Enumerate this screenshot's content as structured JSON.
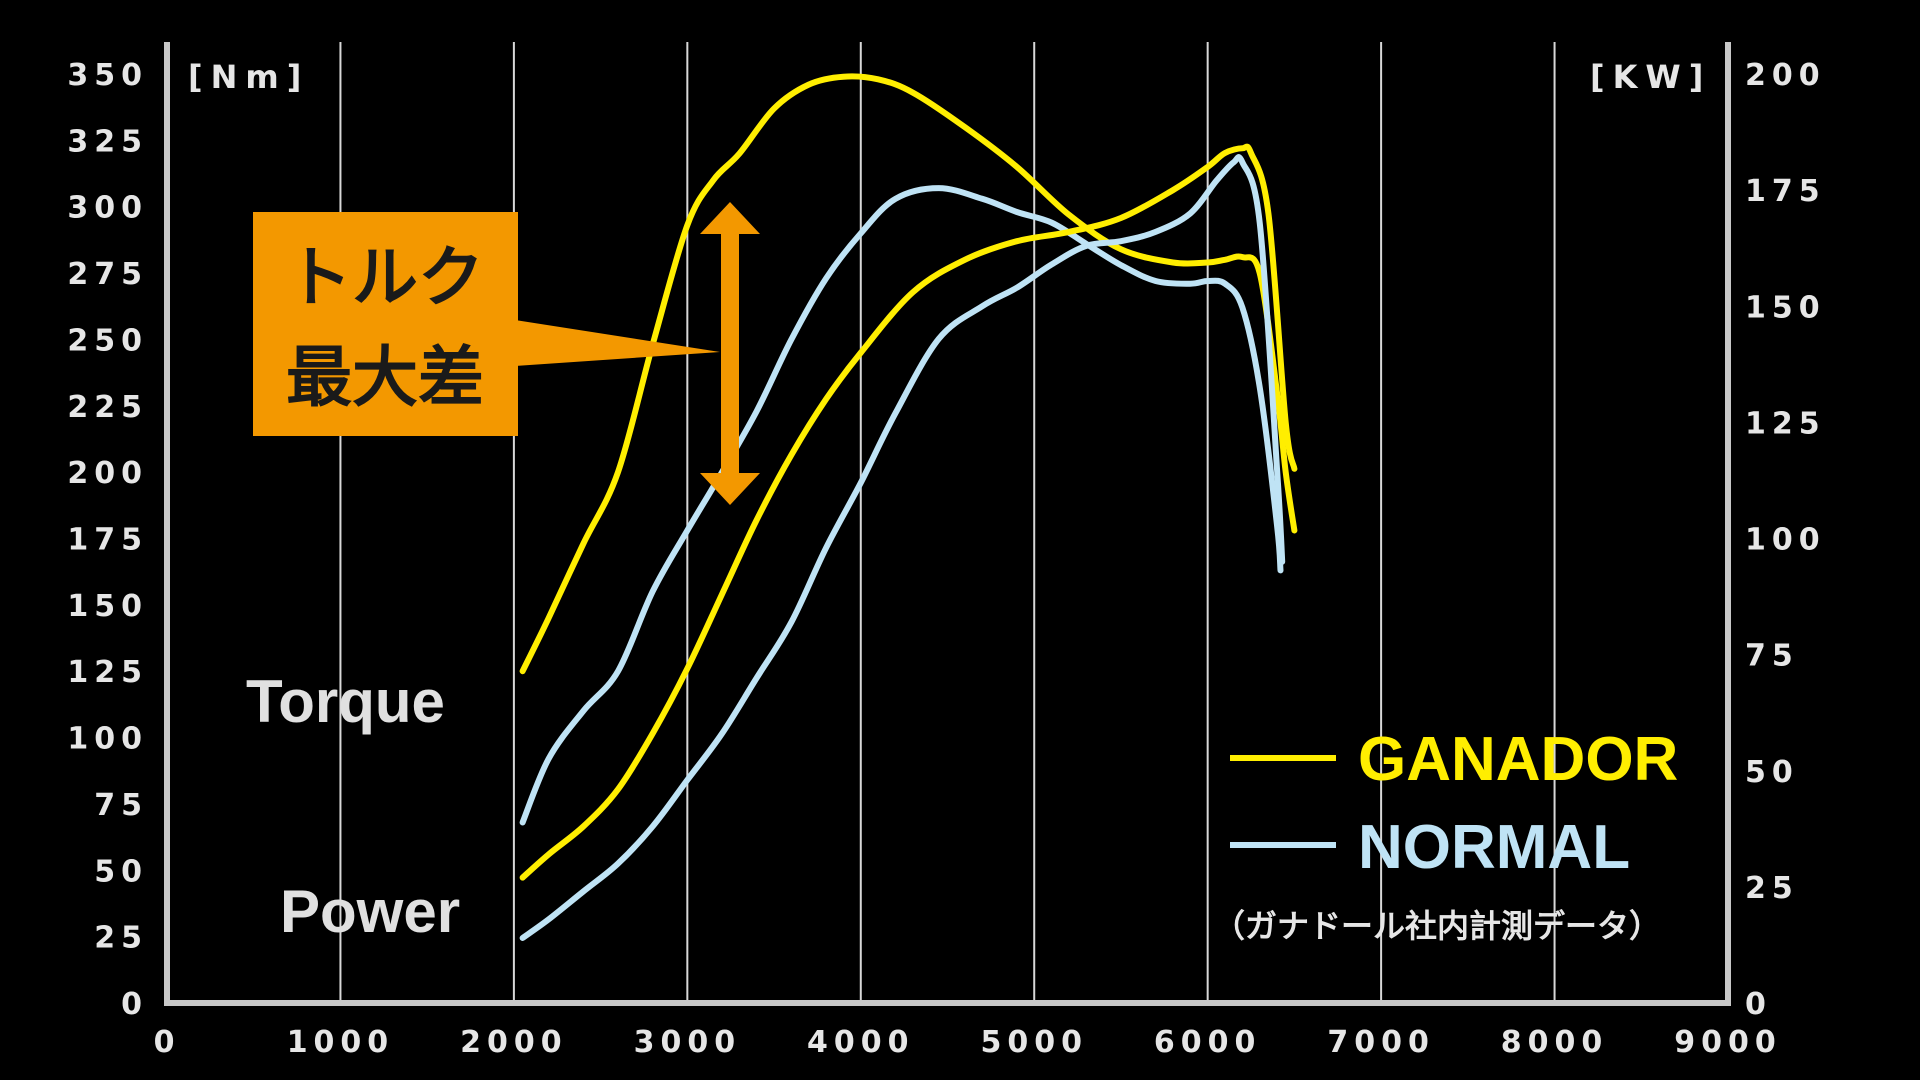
{
  "chart_data": {
    "type": "line",
    "x_label": "",
    "left_unit": "[Nm]",
    "right_unit": "[KW]",
    "xlim": [
      0,
      9000
    ],
    "ylim_left": [
      0,
      350
    ],
    "ylim_right": [
      0,
      200
    ],
    "x_ticks": [
      "0",
      "1000",
      "2000",
      "3000",
      "4000",
      "5000",
      "6000",
      "7000",
      "8000",
      "9000"
    ],
    "y_left_ticks": [
      "0",
      "25",
      "50",
      "75",
      "100",
      "125",
      "150",
      "175",
      "200",
      "225",
      "250",
      "275",
      "300",
      "325",
      "350"
    ],
    "y_right_ticks": [
      "0",
      "25",
      "50",
      "75",
      "100",
      "125",
      "150",
      "175",
      "200"
    ],
    "vertical_grid": true,
    "colors": {
      "ganador": "#ffee00",
      "normal": "#bfe3f5",
      "axis": "#c8c8c8",
      "grid": "#d8d8d8",
      "callout_bg": "#f39800",
      "callout_arrow": "#f39800"
    },
    "series": [
      {
        "name": "GANADOR",
        "metric": "Torque",
        "axis": "left",
        "x": [
          2050,
          2200,
          2400,
          2600,
          2800,
          3000,
          3150,
          3300,
          3500,
          3700,
          3900,
          4100,
          4300,
          4600,
          4900,
          5200,
          5500,
          5800,
          6000,
          6100,
          6200,
          6300,
          6400,
          6450,
          6500
        ],
        "y": [
          125,
          145,
          173,
          200,
          248,
          293,
          310,
          320,
          337,
          346,
          349,
          348,
          343,
          330,
          315,
          297,
          284,
          279,
          279,
          280,
          281,
          275,
          230,
          200,
          178
        ]
      },
      {
        "name": "NORMAL",
        "metric": "Torque",
        "axis": "left",
        "x": [
          2050,
          2200,
          2400,
          2600,
          2800,
          3000,
          3200,
          3400,
          3600,
          3800,
          4000,
          4200,
          4450,
          4700,
          4900,
          5100,
          5300,
          5500,
          5700,
          5900,
          6000,
          6100,
          6200,
          6300,
          6400,
          6420
        ],
        "y": [
          68,
          92,
          110,
          125,
          155,
          178,
          200,
          223,
          250,
          273,
          290,
          303,
          307,
          303,
          298,
          294,
          286,
          278,
          272,
          271,
          272,
          271,
          262,
          232,
          180,
          163
        ]
      },
      {
        "name": "GANADOR",
        "metric": "Power",
        "axis": "right",
        "x": [
          2050,
          2200,
          2400,
          2600,
          2800,
          3000,
          3200,
          3400,
          3600,
          3800,
          4000,
          4300,
          4600,
          4900,
          5200,
          5500,
          5800,
          6000,
          6100,
          6200,
          6250,
          6350,
          6450,
          6500
        ],
        "y": [
          27,
          32,
          38,
          46,
          58,
          72,
          88,
          104,
          118,
          130,
          140,
          153,
          160,
          164,
          166,
          169,
          175,
          180,
          183,
          184,
          183,
          170,
          125,
          115
        ]
      },
      {
        "name": "NORMAL",
        "metric": "Power",
        "axis": "right",
        "x": [
          2050,
          2200,
          2400,
          2600,
          2800,
          3000,
          3200,
          3400,
          3600,
          3800,
          4000,
          4200,
          4450,
          4700,
          4900,
          5100,
          5300,
          5500,
          5700,
          5900,
          6050,
          6150,
          6200,
          6300,
          6400,
          6430
        ],
        "y": [
          14,
          18,
          24,
          30,
          38,
          48,
          58,
          70,
          82,
          98,
          112,
          127,
          143,
          150,
          154,
          159,
          163,
          164,
          166,
          170,
          177,
          181,
          181,
          168,
          115,
          95
        ]
      }
    ],
    "annotations": {
      "callout_line1": "トルク",
      "callout_line2": "最大差",
      "torque_label": "Torque",
      "power_label": "Power"
    },
    "legend": {
      "placement": "bottom-right",
      "ganador_label": "GANADOR",
      "normal_label": "NORMAL",
      "note": "（ガナドール社内計測データ）"
    }
  }
}
